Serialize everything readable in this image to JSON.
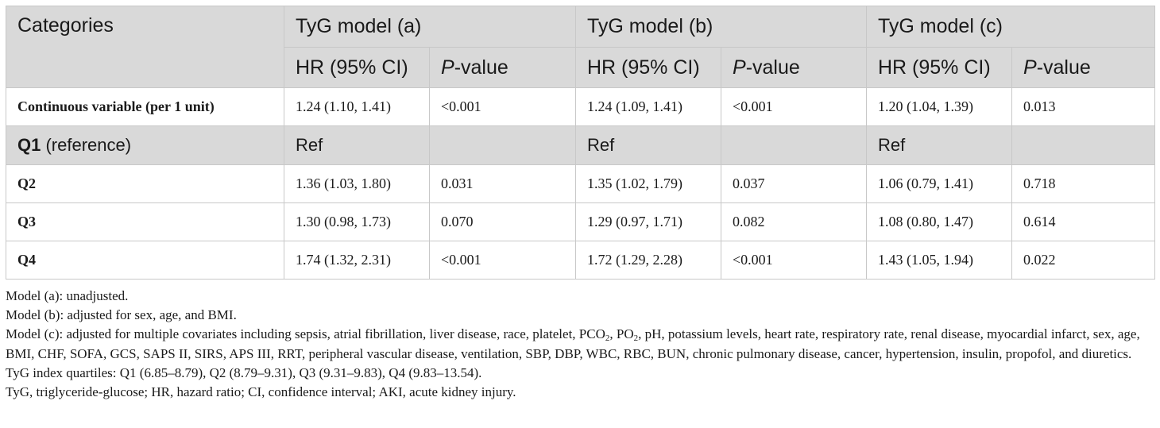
{
  "header": {
    "categories": "Categories",
    "models": [
      "TyG model (a)",
      "TyG model (b)",
      "TyG model (c)"
    ],
    "hr_label": "HR (95% CI)",
    "p_italic": "P",
    "p_rest": "-value"
  },
  "rows": [
    {
      "label": "Continuous variable (per 1 unit)",
      "a_hr": "1.24 (1.10, 1.41)",
      "a_p": "<0.001",
      "b_hr": "1.24 (1.09, 1.41)",
      "b_p": "<0.001",
      "c_hr": "1.20 (1.04, 1.39)",
      "c_p": "0.013"
    },
    {
      "label_bold": "Q1",
      "label_rest": " (reference)",
      "a_hr": "Ref",
      "a_p": "",
      "b_hr": "Ref",
      "b_p": "",
      "c_hr": "Ref",
      "c_p": ""
    },
    {
      "label": "Q2",
      "a_hr": "1.36 (1.03, 1.80)",
      "a_p": "0.031",
      "b_hr": "1.35 (1.02, 1.79)",
      "b_p": "0.037",
      "c_hr": "1.06 (0.79, 1.41)",
      "c_p": "0.718"
    },
    {
      "label": "Q3",
      "a_hr": "1.30 (0.98, 1.73)",
      "a_p": "0.070",
      "b_hr": "1.29 (0.97, 1.71)",
      "b_p": "0.082",
      "c_hr": "1.08 (0.80, 1.47)",
      "c_p": "0.614"
    },
    {
      "label": "Q4",
      "a_hr": "1.74 (1.32, 2.31)",
      "a_p": "<0.001",
      "b_hr": "1.72 (1.29, 2.28)",
      "b_p": "<0.001",
      "c_hr": "1.43 (1.05, 1.94)",
      "c_p": "0.022"
    }
  ],
  "notes": {
    "model_a": "Model (a): unadjusted.",
    "model_b": "Model (b): adjusted for sex, age, and BMI.",
    "model_c_1": "Model (c): adjusted for multiple covariates including sepsis, atrial fibrillation, liver disease, race, platelet, PCO",
    "sub_2a": "2",
    "model_c_2": ", PO",
    "sub_2b": "2",
    "model_c_3": ", pH, potassium levels, heart rate, respiratory rate, renal disease, myocardial infarct, sex, age, BMI, CHF, SOFA, GCS, SAPS II, SIRS, APS III, RRT, peripheral vascular disease, ventilation, SBP, DBP, WBC, RBC, BUN, chronic pulmonary disease, cancer, hypertension, insulin, propofol, and diuretics.",
    "quartiles": "TyG index quartiles: Q1 (6.85–8.79), Q2 (8.79–9.31), Q3 (9.31–9.83), Q4 (9.83–13.54).",
    "abbrev": "TyG, triglyceride-glucose; HR, hazard ratio; CI, confidence interval; AKI, acute kidney injury."
  }
}
